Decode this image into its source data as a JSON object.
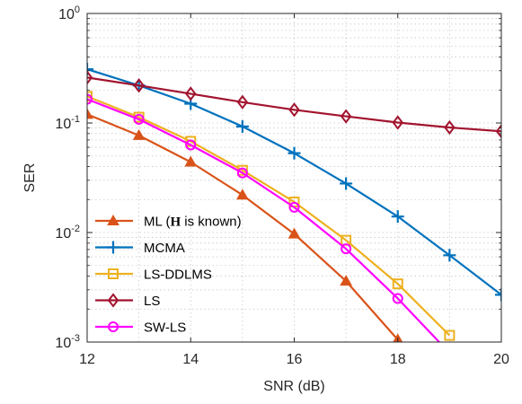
{
  "chart_data": {
    "type": "line",
    "xlabel": "SNR (dB)",
    "ylabel": "SER",
    "xlim": [
      12,
      20
    ],
    "ylim": [
      0.001,
      1
    ],
    "yscale": "log",
    "grid": true,
    "legend_position": "bottom-left",
    "x_ticks": [
      {
        "value": 12,
        "label": "12"
      },
      {
        "value": 14,
        "label": "14"
      },
      {
        "value": 16,
        "label": "16"
      },
      {
        "value": 18,
        "label": "18"
      },
      {
        "value": 20,
        "label": "20"
      }
    ],
    "y_ticks": [
      {
        "value": 1,
        "base": "10",
        "exp": "0"
      },
      {
        "value": 0.1,
        "base": "10",
        "exp": "-1"
      },
      {
        "value": 0.01,
        "base": "10",
        "exp": "-2"
      },
      {
        "value": 0.001,
        "base": "10",
        "exp": "-3"
      }
    ],
    "series": [
      {
        "name": "ML (H is known)",
        "legend_prefix": "ML (",
        "legend_bold": "H",
        "legend_suffix": " is known)",
        "color": "#D95319",
        "marker": "triangle",
        "x": [
          12,
          13,
          14,
          15,
          16,
          17,
          18
        ],
        "y": [
          0.12,
          0.077,
          0.044,
          0.022,
          0.0097,
          0.0036,
          0.00105
        ]
      },
      {
        "name": "MCMA",
        "color": "#0072BD",
        "marker": "plus",
        "x": [
          12,
          13,
          14,
          15,
          16,
          17,
          18,
          19,
          20
        ],
        "y": [
          0.31,
          0.22,
          0.15,
          0.093,
          0.053,
          0.028,
          0.014,
          0.0062,
          0.0027
        ]
      },
      {
        "name": "LS-DDLMS",
        "color": "#EDB120",
        "marker": "square",
        "x": [
          12,
          13,
          14,
          15,
          16,
          17,
          18,
          19
        ],
        "y": [
          0.175,
          0.113,
          0.068,
          0.037,
          0.019,
          0.0085,
          0.0034,
          0.00115
        ]
      },
      {
        "name": "LS",
        "color": "#A2142F",
        "marker": "diamond",
        "x": [
          12,
          13,
          14,
          15,
          16,
          17,
          18,
          19,
          20
        ],
        "y": [
          0.26,
          0.22,
          0.185,
          0.155,
          0.132,
          0.115,
          0.101,
          0.091,
          0.084
        ]
      },
      {
        "name": "SW-LS",
        "color": "#FF00FF",
        "marker": "circle",
        "x": [
          12,
          13,
          14,
          15,
          16,
          17,
          18,
          18.8
        ],
        "y": [
          0.165,
          0.108,
          0.063,
          0.035,
          0.017,
          0.0071,
          0.0025,
          0.001
        ]
      }
    ]
  }
}
